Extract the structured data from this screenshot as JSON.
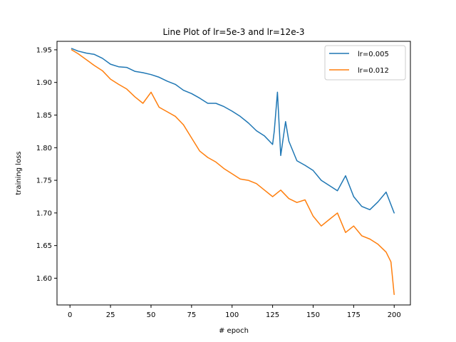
{
  "chart_data": {
    "type": "line",
    "title": "Line Plot of lr=5e-3 and lr=12e-3",
    "xlabel": "# epoch",
    "ylabel": "training loss",
    "xlim": [
      -8,
      210
    ],
    "ylim": [
      1.559,
      1.963
    ],
    "xticks": [
      0,
      25,
      50,
      75,
      100,
      125,
      150,
      175,
      200
    ],
    "yticks": [
      1.6,
      1.65,
      1.7,
      1.75,
      1.8,
      1.85,
      1.9,
      1.95
    ],
    "grid": false,
    "legend_position": "top-right",
    "series": [
      {
        "name": "lr=0.005",
        "color": "#1f77b4",
        "x": [
          1,
          5,
          10,
          15,
          20,
          25,
          30,
          35,
          40,
          45,
          50,
          55,
          60,
          65,
          70,
          75,
          80,
          85,
          90,
          95,
          100,
          105,
          110,
          115,
          120,
          125,
          126,
          128,
          130,
          133,
          135,
          140,
          145,
          150,
          155,
          160,
          165,
          170,
          175,
          180,
          185,
          190,
          195,
          200
        ],
        "y": [
          1.952,
          1.948,
          1.945,
          1.943,
          1.937,
          1.928,
          1.924,
          1.923,
          1.917,
          1.915,
          1.912,
          1.908,
          1.902,
          1.897,
          1.888,
          1.883,
          1.876,
          1.868,
          1.868,
          1.863,
          1.856,
          1.848,
          1.838,
          1.826,
          1.818,
          1.805,
          1.825,
          1.885,
          1.788,
          1.84,
          1.81,
          1.78,
          1.773,
          1.765,
          1.75,
          1.742,
          1.734,
          1.757,
          1.725,
          1.71,
          1.705,
          1.717,
          1.732,
          1.7
        ]
      },
      {
        "name": "lr=0.012",
        "color": "#ff7f0e",
        "x": [
          1,
          5,
          10,
          15,
          20,
          25,
          30,
          35,
          40,
          45,
          50,
          55,
          60,
          65,
          70,
          75,
          80,
          85,
          90,
          95,
          100,
          105,
          110,
          115,
          120,
          125,
          130,
          135,
          140,
          145,
          150,
          155,
          160,
          165,
          170,
          175,
          180,
          185,
          190,
          195,
          198,
          200
        ],
        "y": [
          1.95,
          1.944,
          1.935,
          1.926,
          1.918,
          1.905,
          1.897,
          1.89,
          1.878,
          1.868,
          1.885,
          1.862,
          1.855,
          1.848,
          1.835,
          1.815,
          1.795,
          1.785,
          1.778,
          1.768,
          1.76,
          1.752,
          1.75,
          1.745,
          1.735,
          1.725,
          1.735,
          1.722,
          1.716,
          1.72,
          1.695,
          1.68,
          1.69,
          1.7,
          1.67,
          1.68,
          1.665,
          1.66,
          1.652,
          1.64,
          1.625,
          1.575
        ]
      }
    ]
  }
}
